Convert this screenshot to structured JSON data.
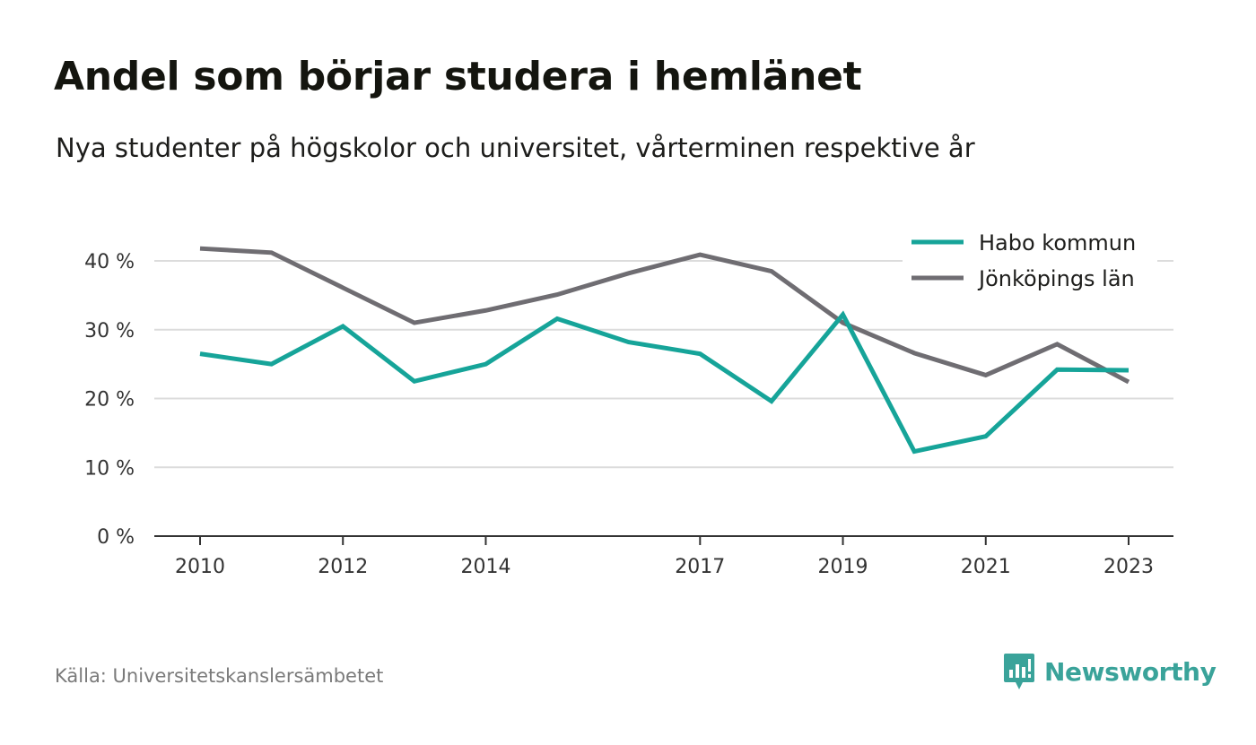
{
  "header": {
    "title": "Andel som börjar studera i hemlänet",
    "subtitle": "Nya studenter på högskolor och universitet, vårterminen respektive år"
  },
  "footer": {
    "source": "Källa: Universitetskanslersämbetet",
    "brand": "Newsworthy",
    "brand_icon": "newsworthy-logo-icon"
  },
  "colors": {
    "habo": "#16a499",
    "lan": "#6f6d72",
    "grid": "#dcdcdc",
    "axis": "#333333",
    "brand": "#3aa39a"
  },
  "chart_data": {
    "type": "line",
    "x": [
      2010,
      2011,
      2012,
      2013,
      2014,
      2015,
      2016,
      2017,
      2018,
      2019,
      2020,
      2021,
      2022,
      2023
    ],
    "x_tick_labels": [
      "2010",
      "2012",
      "2014",
      "2017",
      "2019",
      "2021",
      "2023"
    ],
    "x_ticks": [
      2010,
      2012,
      2014,
      2017,
      2019,
      2021,
      2023
    ],
    "y_ticks": [
      0,
      10,
      20,
      30,
      40
    ],
    "y_tick_labels": [
      "0 %",
      "10 %",
      "20 %",
      "30 %",
      "40 %"
    ],
    "ylim": [
      0,
      45
    ],
    "grid": true,
    "legend_position": "top-right",
    "series": [
      {
        "name": "Habo kommun",
        "color": "#16a499",
        "values": [
          26.5,
          25.0,
          30.5,
          22.5,
          25.0,
          31.6,
          28.2,
          26.5,
          19.6,
          32.2,
          12.3,
          14.5,
          24.2,
          24.1
        ]
      },
      {
        "name": "Jönköpings län",
        "color": "#6f6d72",
        "values": [
          41.8,
          41.2,
          36.1,
          31.0,
          32.8,
          35.1,
          38.2,
          40.9,
          38.5,
          31.0,
          26.6,
          23.4,
          27.9,
          22.4
        ]
      }
    ]
  }
}
